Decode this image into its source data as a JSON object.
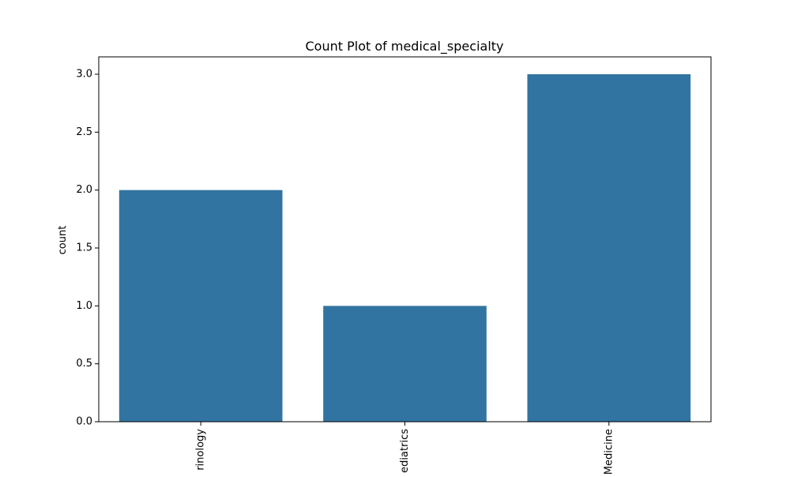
{
  "chart_data": {
    "type": "bar",
    "title": "Count Plot of medical_specialty",
    "xlabel": "",
    "ylabel": "count",
    "categories": [
      "rinology",
      "ediatrics",
      "Medicine"
    ],
    "values": [
      2,
      1,
      3
    ],
    "ylim": [
      0,
      3.15
    ],
    "yticks": [
      0.0,
      0.5,
      1.0,
      1.5,
      2.0,
      2.5,
      3.0
    ],
    "ytick_labels": [
      "0.0",
      "0.5",
      "1.0",
      "1.5",
      "2.0",
      "2.5",
      "3.0"
    ],
    "grid": false,
    "bar_color": "#3274a1"
  }
}
